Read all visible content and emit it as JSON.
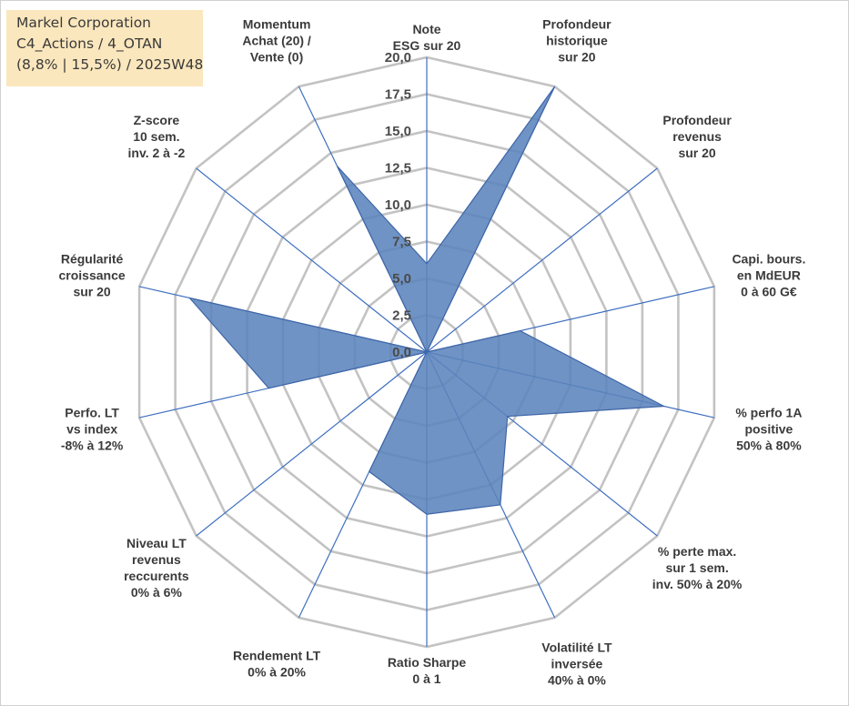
{
  "title_box": {
    "line1": "Markel Corporation",
    "line2": "C4_Actions / 4_OTAN",
    "line3": "(8,8% | 15,5%) / 2025W48"
  },
  "chart_data": {
    "type": "radar",
    "scale_max": 20,
    "tick_labels": [
      "0,0",
      "2,5",
      "5,0",
      "7,5",
      "10,0",
      "12,5",
      "15,0",
      "17,5",
      "20,0"
    ],
    "axes": [
      {
        "label": [
          "Note",
          "ESG sur 20"
        ],
        "value": 6.0
      },
      {
        "label": [
          "Profondeur",
          "historique",
          "sur 20"
        ],
        "value": 20.0
      },
      {
        "label": [
          "Profondeur",
          "revenus",
          "sur 20"
        ],
        "value": 0.0
      },
      {
        "label": [
          "Capi. bours.",
          "en MdEUR",
          "0 à 60 G€"
        ],
        "value": 6.5
      },
      {
        "label": [
          "% perfo 1A",
          "positive",
          "50% à 80%"
        ],
        "value": 16.5
      },
      {
        "label": [
          "% perte max.",
          "sur 1 sem.",
          "inv. 50% à 20%"
        ],
        "value": 7.0
      },
      {
        "label": [
          "Volatilité LT",
          "inversée",
          "40% à 0%"
        ],
        "value": 11.5
      },
      {
        "label": [
          "Ratio Sharpe",
          "0 à 1"
        ],
        "value": 11.0
      },
      {
        "label": [
          "Rendement LT",
          "0% à 20%"
        ],
        "value": 9.0
      },
      {
        "label": [
          "Niveau LT",
          "revenus",
          "reccurents",
          "0% à 6%"
        ],
        "value": 0.0
      },
      {
        "label": [
          "Perfo. LT",
          "vs index",
          "-8% à 12%"
        ],
        "value": 11.0
      },
      {
        "label": [
          "Régularité",
          "croissance",
          "sur 20"
        ],
        "value": 16.5
      },
      {
        "label": [
          "Z-score",
          "10 sem.",
          "inv. 2 à -2"
        ],
        "value": 0.0
      },
      {
        "label": [
          "Momentum",
          "Achat (20) /",
          "Vente (0)"
        ],
        "value": 14.0
      }
    ],
    "colors": {
      "grid": "#c3c3c3",
      "spoke": "#3f6fc0",
      "fill": "#5b84bc",
      "stroke": "#3f66a8"
    }
  }
}
